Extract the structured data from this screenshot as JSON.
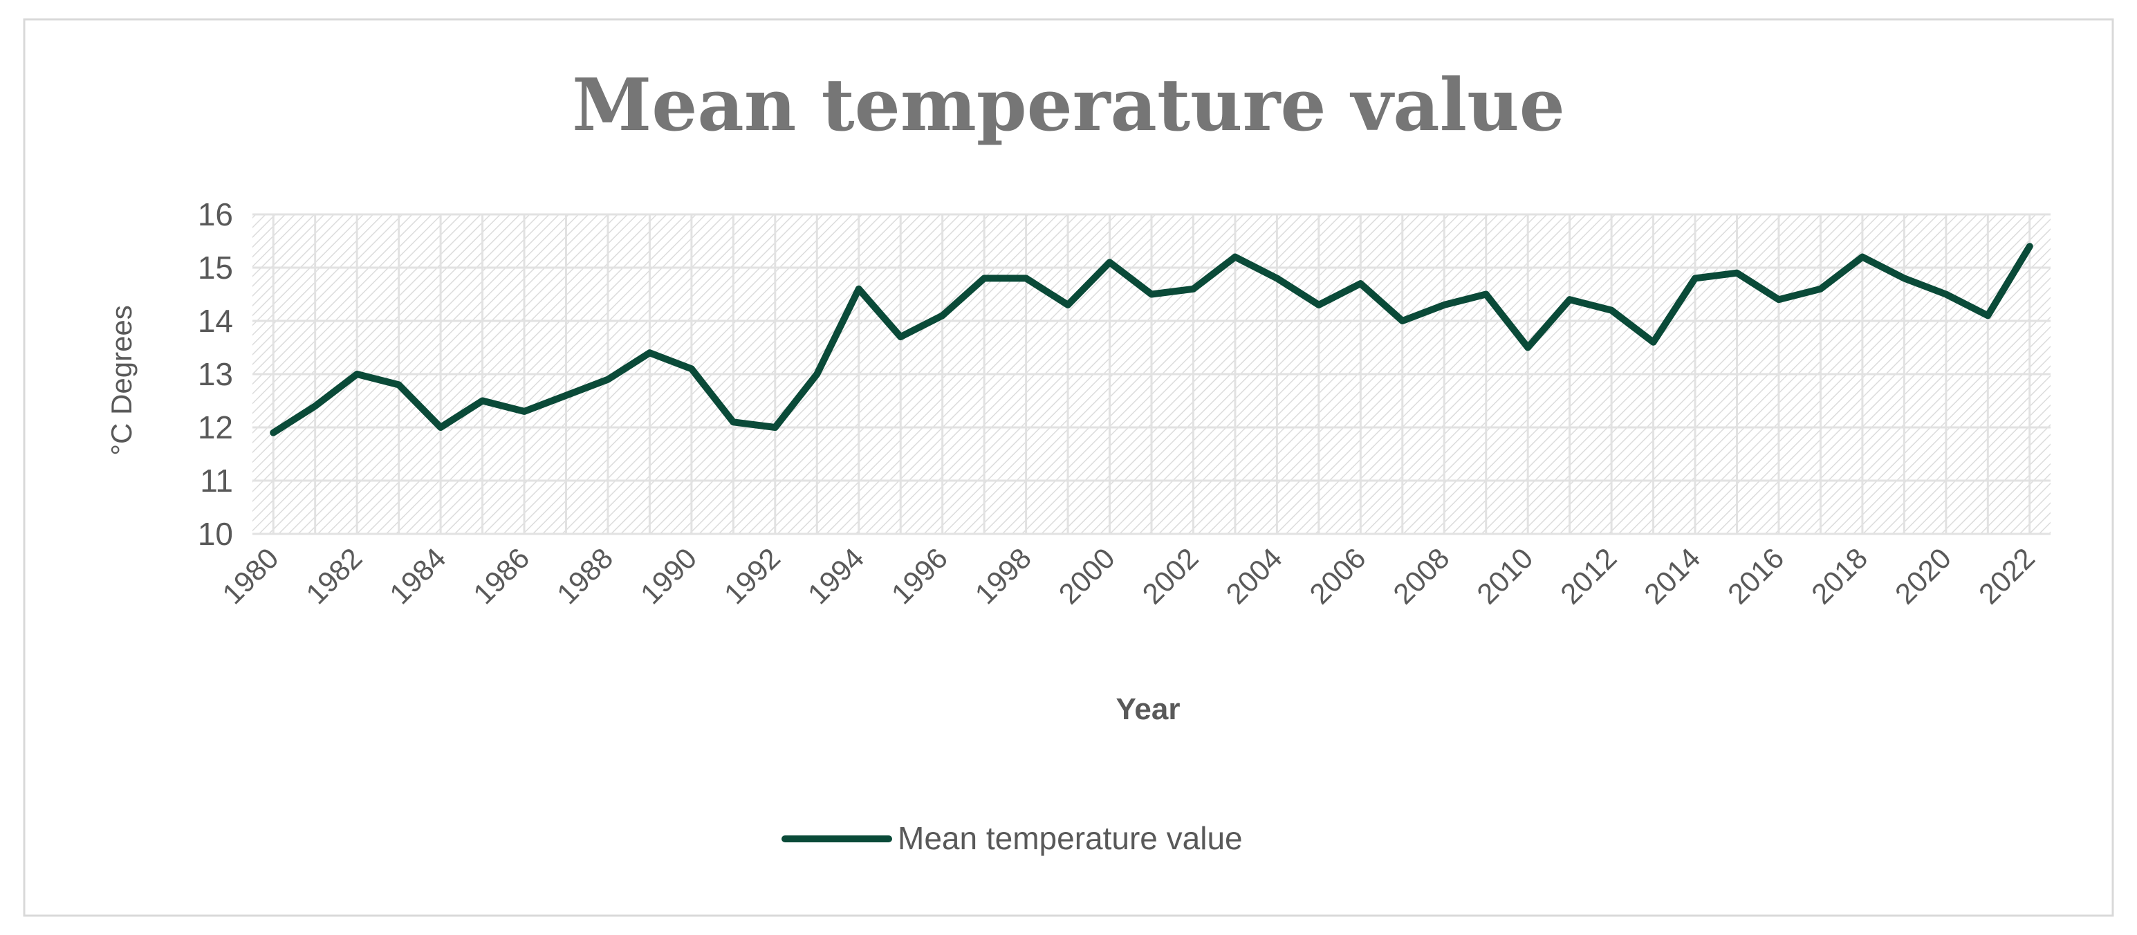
{
  "chart_data": {
    "type": "line",
    "title": "Mean temperature value",
    "xlabel": "Year",
    "ylabel": "°C Degrees",
    "ylim": [
      10,
      16
    ],
    "yticks": [
      "10",
      "11",
      "12",
      "13",
      "14",
      "15",
      "16"
    ],
    "xtick_labels": [
      "1980",
      "1982",
      "1984",
      "1986",
      "1988",
      "1990",
      "1992",
      "1994",
      "1996",
      "1998",
      "2000",
      "2002",
      "2004",
      "2006",
      "2008",
      "2010",
      "2012",
      "2014",
      "2016",
      "2018",
      "2020",
      "2022"
    ],
    "grid": true,
    "legend_position": "bottom",
    "series": [
      {
        "name": "Mean temperature value",
        "color": "#0a4a38",
        "x": [
          1980,
          1981,
          1982,
          1983,
          1984,
          1985,
          1986,
          1987,
          1988,
          1989,
          1990,
          1991,
          1992,
          1993,
          1994,
          1995,
          1996,
          1997,
          1998,
          1999,
          2000,
          2001,
          2002,
          2003,
          2004,
          2005,
          2006,
          2007,
          2008,
          2009,
          2010,
          2011,
          2012,
          2013,
          2014,
          2015,
          2016,
          2017,
          2018,
          2019,
          2020,
          2021,
          2022
        ],
        "values": [
          11.9,
          12.4,
          13.0,
          12.8,
          12.0,
          12.5,
          12.3,
          12.6,
          12.9,
          13.4,
          13.1,
          12.1,
          12.0,
          13.0,
          14.6,
          13.7,
          14.1,
          14.8,
          14.8,
          14.3,
          15.1,
          14.5,
          14.6,
          15.2,
          14.8,
          14.3,
          14.7,
          14.0,
          14.3,
          14.5,
          13.5,
          14.4,
          14.2,
          13.6,
          14.8,
          14.9,
          14.4,
          14.6,
          15.2,
          14.8,
          14.5,
          14.1,
          15.4
        ]
      }
    ]
  }
}
